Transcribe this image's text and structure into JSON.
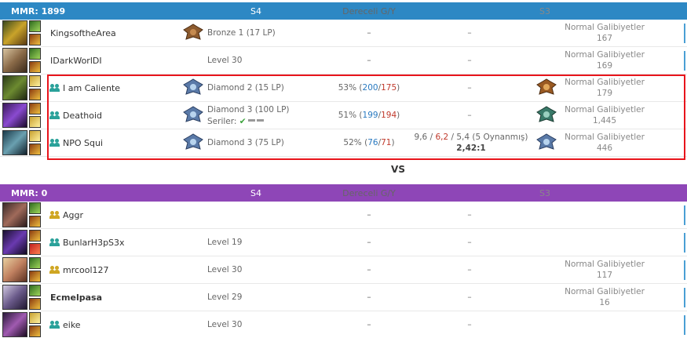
{
  "teams": [
    {
      "mmr": "MMR: 1899",
      "header": {
        "s4": "S4",
        "ranked": "Dereceli G/Y",
        "s3": "S3"
      },
      "players": [
        {
          "name": "KingsoftheArea",
          "s4": "Bronze 1 (17 LP)",
          "ranked": "–",
          "mid": "–",
          "s3_label": "Normal Galibiyetler",
          "s3_value": "167"
        },
        {
          "name": "IDarkWorlDI",
          "s4": "Level 30",
          "ranked": "–",
          "mid": "–",
          "s3_label": "Normal Galibiyetler",
          "s3_value": "169"
        },
        {
          "name": "I am Caliente",
          "s4": "Diamond 2 (15 LP)",
          "ranked_pct": "53%",
          "wins": "200",
          "losses": "175",
          "mid": "–",
          "s3_label": "Normal Galibiyetler",
          "s3_value": "179"
        },
        {
          "name": "Deathoid",
          "s4": "Diamond 3 (100 LP)",
          "series_label": "Seriler:",
          "ranked_pct": "51%",
          "wins": "199",
          "losses": "194",
          "mid": "–",
          "s3_label": "Normal Galibiyetler",
          "s3_value": "1,445"
        },
        {
          "name": "NPO Squi",
          "s4": "Diamond 3 (75 LP)",
          "ranked_pct": "52%",
          "wins": "76",
          "losses": "71",
          "kda_k": "9,6",
          "kda_d": "6,2",
          "kda_a": "5,4",
          "kda_games": "(5 Oynanmış)",
          "kda_ratio": "2,42:1",
          "s3_label": "Normal Galibiyetler",
          "s3_value": "446"
        }
      ]
    },
    {
      "mmr": "MMR: 0",
      "header": {
        "s4": "S4",
        "ranked": "Dereceli G/Y",
        "s3": "S3"
      },
      "players": [
        {
          "name": "Aggr",
          "s4": "",
          "ranked": "–",
          "mid": "–",
          "s3_label": "",
          "s3_value": ""
        },
        {
          "name": "BunlarH3pS3x",
          "s4": "Level 19",
          "ranked": "–",
          "mid": "–",
          "s3_label": "",
          "s3_value": ""
        },
        {
          "name": "mrcool127",
          "s4": "Level 30",
          "ranked": "–",
          "mid": "–",
          "s3_label": "Normal Galibiyetler",
          "s3_value": "117"
        },
        {
          "name": "Ecmelpasa",
          "s4": "Level 29",
          "ranked": "–",
          "mid": "–",
          "s3_label": "Normal Galibiyetler",
          "s3_value": "16"
        },
        {
          "name": "eike",
          "s4": "Level 30",
          "ranked": "–",
          "mid": "–",
          "s3_label": "",
          "s3_value": ""
        }
      ]
    }
  ],
  "vs": "VS",
  "colors": {
    "blue_header": "#2d88c4",
    "purple_header": "#8e46b7",
    "highlight": "#e8141b",
    "wins": "#2a7ac0",
    "losses": "#c0392b"
  }
}
